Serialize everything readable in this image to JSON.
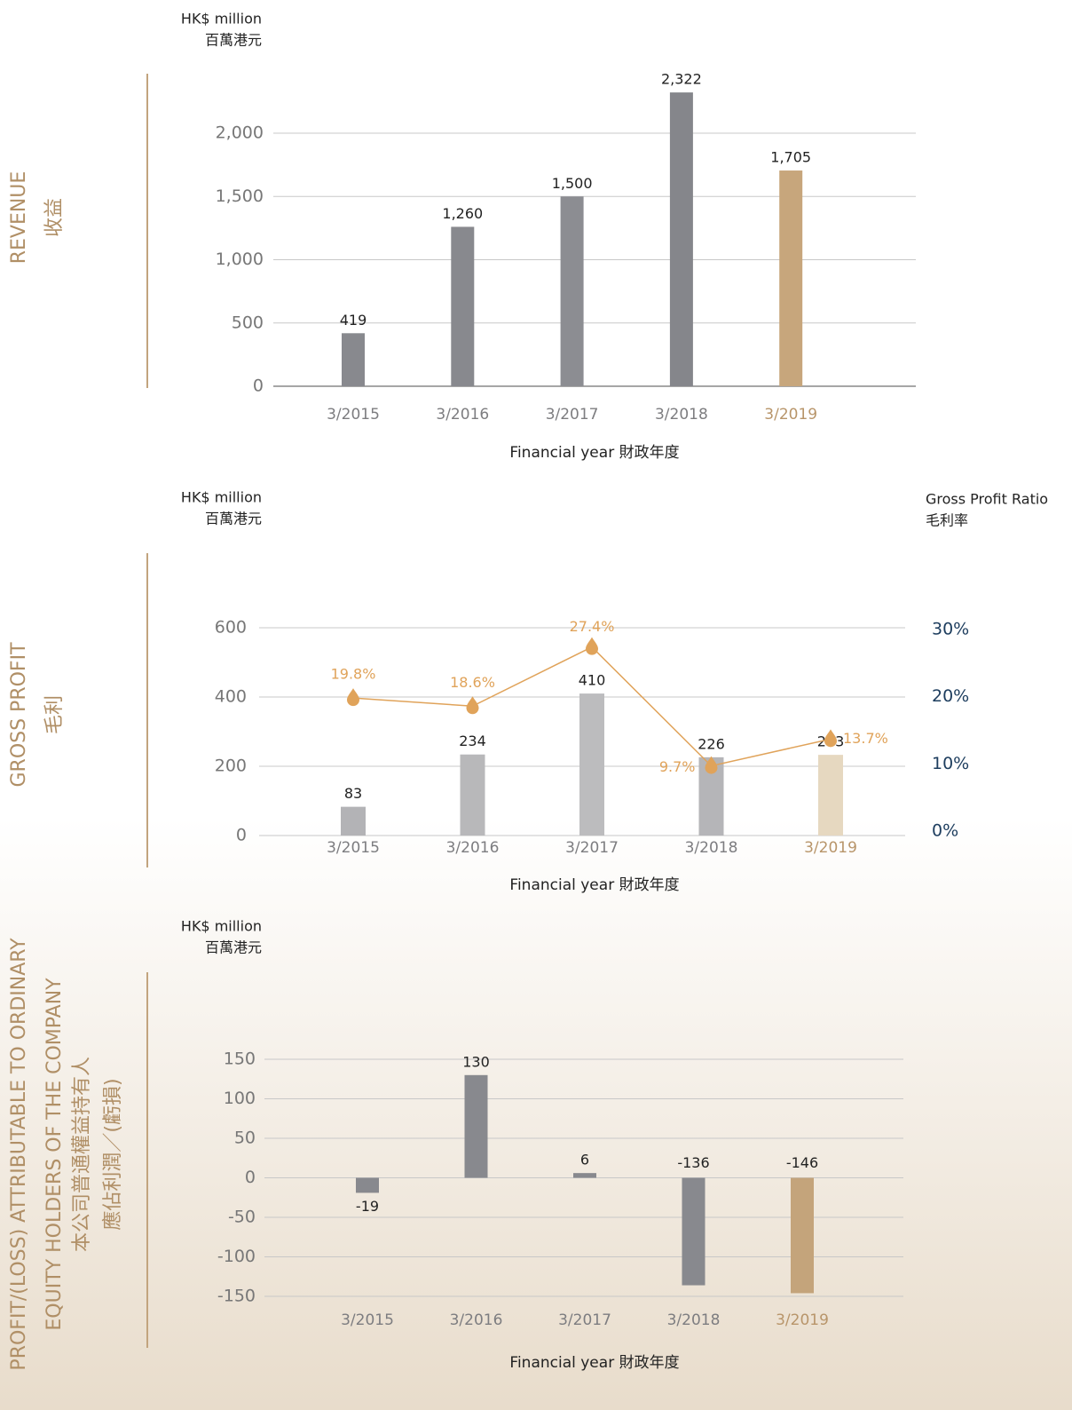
{
  "chart_data": [
    {
      "type": "bar",
      "side_title": [
        "REVENUE",
        "收益"
      ],
      "unit_label": [
        "HK$ million",
        "百萬港元"
      ],
      "categories": [
        "3/2015",
        "3/2016",
        "3/2017",
        "3/2018",
        "3/2019"
      ],
      "category_colors": [
        "#7d7d80",
        "#7d7d80",
        "#7d7d80",
        "#7d7d80",
        "#b8956a"
      ],
      "series": [
        {
          "values": [
            419,
            1260,
            1500,
            2322,
            1705
          ],
          "value_labels": [
            "419",
            "1,260",
            "1,500",
            "2,322",
            "1,705"
          ],
          "colors": [
            "#88898e",
            "#88898e",
            "#8c8d92",
            "#85868b",
            "#c7a67c"
          ]
        }
      ],
      "ylim": [
        0,
        2400
      ],
      "yticks": [
        0,
        500,
        {
          "value": 1000,
          "label": "1,000"
        },
        {
          "value": 1500,
          "label": "1,500"
        },
        {
          "value": 2000,
          "label": "2,000"
        }
      ],
      "grid": true,
      "xlabel": "Financial year 財政年度"
    },
    {
      "type": "bar",
      "side_title": [
        "GROSS PROFIT",
        "毛利"
      ],
      "unit_label": [
        "HK$ million",
        "百萬港元"
      ],
      "y2_unit_label": [
        "Gross Profit Ratio",
        "毛利率"
      ],
      "categories": [
        "3/2015",
        "3/2016",
        "3/2017",
        "3/2018",
        "3/2019"
      ],
      "category_colors": [
        "#7d7d80",
        "#7d7d80",
        "#7d7d80",
        "#7d7d80",
        "#b8956a"
      ],
      "series": [
        {
          "values": [
            83,
            234,
            410,
            226,
            233
          ],
          "value_labels": [
            "83",
            "234",
            "410",
            "226",
            "233"
          ],
          "colors": [
            "#b3b3b6",
            "#b8b8ba",
            "#bcbcbe",
            "#b5b5b8",
            "#e6d8c0"
          ]
        },
        {
          "type": "line",
          "axis": "y2",
          "color": "#e0a35a",
          "values": [
            19.8,
            18.6,
            27.4,
            9.7,
            13.7
          ],
          "value_labels": [
            "19.8%",
            "18.6%",
            "27.4%",
            "9.7%",
            "13.7%"
          ]
        }
      ],
      "ylim": [
        0,
        600
      ],
      "yticks": [
        0,
        200,
        400,
        600
      ],
      "y2lim": [
        0,
        30
      ],
      "y2ticks": [
        {
          "value": 0,
          "label": "0%"
        },
        {
          "value": 10,
          "label": "10%"
        },
        {
          "value": 20,
          "label": "20%"
        },
        {
          "value": 30,
          "label": "30%"
        }
      ],
      "grid": true,
      "xlabel": "Financial year 財政年度"
    },
    {
      "type": "bar",
      "side_title": [
        "PROFIT/(LOSS) ATTRIBUTABLE TO ORDINARY",
        "EQUITY HOLDERS OF THE COMPANY",
        "本公司普通權益持有人",
        "應佔利潤／(虧損)"
      ],
      "unit_label": [
        "HK$ million",
        "百萬港元"
      ],
      "categories": [
        "3/2015",
        "3/2016",
        "3/2017",
        "3/2018",
        "3/2019"
      ],
      "category_colors": [
        "#7d7d80",
        "#7d7d80",
        "#7d7d80",
        "#7d7d80",
        "#b8956a"
      ],
      "series": [
        {
          "values": [
            -19,
            130,
            6,
            -136,
            -146
          ],
          "value_labels": [
            "-19",
            "130",
            "6",
            "-136",
            "-146"
          ],
          "colors": [
            "#88898e",
            "#88898e",
            "#88898e",
            "#88898e",
            "#c4a47b"
          ]
        }
      ],
      "ylim": [
        -150,
        150
      ],
      "yticks": [
        -150,
        -100,
        -50,
        0,
        50,
        100,
        150
      ],
      "grid": true,
      "xlabel": "Financial year 財政年度"
    }
  ]
}
